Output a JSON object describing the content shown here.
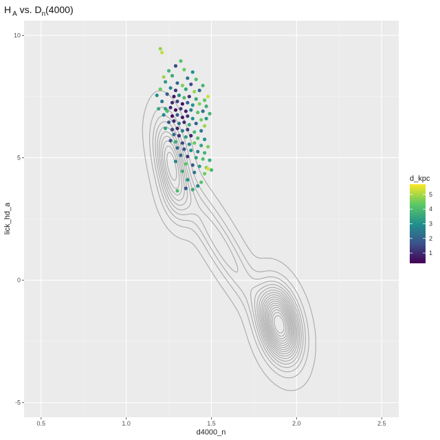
{
  "chart_data": {
    "type": "scatter",
    "title": {
      "main": "H",
      "sub1": "A",
      "mid": " vs. D",
      "sub2": "n",
      "tail": "(4000)"
    },
    "xlabel": "d4000_n",
    "ylabel": "lick_hd_a",
    "xlim": [
      0.4,
      2.6
    ],
    "ylim": [
      -5.6,
      10.6
    ],
    "x_ticks": [
      {
        "value": 0.5,
        "label": "0.5"
      },
      {
        "value": 1.0,
        "label": "1.0"
      },
      {
        "value": 1.5,
        "label": "1.5"
      },
      {
        "value": 2.0,
        "label": "2.0"
      },
      {
        "value": 2.5,
        "label": "2.5"
      }
    ],
    "y_ticks": [
      {
        "value": -5,
        "label": "-5"
      },
      {
        "value": 0,
        "label": "0"
      },
      {
        "value": 5,
        "label": "5"
      },
      {
        "value": 10,
        "label": "10"
      }
    ],
    "grid": true,
    "colorbar": {
      "title": "d_kpc",
      "min": 0.3,
      "max": 5.7,
      "ticks": [
        {
          "value": 1,
          "label": "1"
        },
        {
          "value": 2,
          "label": "2"
        },
        {
          "value": 3,
          "label": "3"
        },
        {
          "value": 4,
          "label": "4"
        },
        {
          "value": 5,
          "label": "5"
        }
      ],
      "placement": "right",
      "palette": [
        "#440154",
        "#3b528b",
        "#21908c",
        "#5dc963",
        "#fde725"
      ]
    },
    "density_contours": {
      "color": "#a8a8a8",
      "levels": 18,
      "peaks": [
        {
          "x": 1.9,
          "y": -1.8,
          "amp": 1.0,
          "sx": 0.075,
          "sy": 0.95,
          "rho": -0.3
        },
        {
          "x": 1.26,
          "y": 4.9,
          "amp": 0.5,
          "sx": 0.06,
          "sy": 1.1,
          "rho": -0.4
        },
        {
          "x": 1.55,
          "y": 1.5,
          "amp": 0.22,
          "sx": 0.17,
          "sy": 1.9,
          "rho": -0.92
        },
        {
          "x": 1.3,
          "y": 3.3,
          "amp": 0.14,
          "sx": 0.06,
          "sy": 0.7,
          "rho": -0.3
        }
      ]
    },
    "points": [
      {
        "x": 1.2,
        "y": 9.45,
        "c": 4.8
      },
      {
        "x": 1.21,
        "y": 9.3,
        "c": 5.2
      },
      {
        "x": 1.32,
        "y": 8.95,
        "c": 4.2
      },
      {
        "x": 1.29,
        "y": 8.75,
        "c": 1.5
      },
      {
        "x": 1.25,
        "y": 8.55,
        "c": 3.8
      },
      {
        "x": 1.34,
        "y": 8.6,
        "c": 4.5
      },
      {
        "x": 1.39,
        "y": 8.5,
        "c": 3.0
      },
      {
        "x": 1.22,
        "y": 8.3,
        "c": 4.9
      },
      {
        "x": 1.27,
        "y": 8.35,
        "c": 3.6
      },
      {
        "x": 1.36,
        "y": 8.25,
        "c": 2.4
      },
      {
        "x": 1.41,
        "y": 8.2,
        "c": 4.1
      },
      {
        "x": 1.23,
        "y": 8.1,
        "c": 3.2
      },
      {
        "x": 1.3,
        "y": 8.05,
        "c": 2.1
      },
      {
        "x": 1.33,
        "y": 7.95,
        "c": 4.6
      },
      {
        "x": 1.38,
        "y": 8.0,
        "c": 1.6
      },
      {
        "x": 1.45,
        "y": 7.95,
        "c": 3.9
      },
      {
        "x": 1.2,
        "y": 7.8,
        "c": 4.4
      },
      {
        "x": 1.26,
        "y": 7.85,
        "c": 2.7
      },
      {
        "x": 1.29,
        "y": 7.75,
        "c": 1.2
      },
      {
        "x": 1.35,
        "y": 7.8,
        "c": 3.4
      },
      {
        "x": 1.4,
        "y": 7.7,
        "c": 4.8
      },
      {
        "x": 1.43,
        "y": 7.75,
        "c": 2.2
      },
      {
        "x": 1.48,
        "y": 7.5,
        "c": 5.3
      },
      {
        "x": 1.18,
        "y": 7.55,
        "c": 3.0
      },
      {
        "x": 1.24,
        "y": 7.6,
        "c": 1.8
      },
      {
        "x": 1.28,
        "y": 7.5,
        "c": 0.7
      },
      {
        "x": 1.31,
        "y": 7.55,
        "c": 2.9
      },
      {
        "x": 1.34,
        "y": 7.45,
        "c": 4.0
      },
      {
        "x": 1.37,
        "y": 7.5,
        "c": 1.1
      },
      {
        "x": 1.41,
        "y": 7.4,
        "c": 3.5
      },
      {
        "x": 1.46,
        "y": 7.35,
        "c": 4.3
      },
      {
        "x": 1.21,
        "y": 7.3,
        "c": 2.5
      },
      {
        "x": 1.27,
        "y": 7.25,
        "c": 0.9
      },
      {
        "x": 1.3,
        "y": 7.3,
        "c": 1.4
      },
      {
        "x": 1.33,
        "y": 7.2,
        "c": 0.6
      },
      {
        "x": 1.36,
        "y": 7.25,
        "c": 2.0
      },
      {
        "x": 1.39,
        "y": 7.15,
        "c": 3.1
      },
      {
        "x": 1.43,
        "y": 7.2,
        "c": 4.7
      },
      {
        "x": 1.47,
        "y": 7.1,
        "c": 3.7
      },
      {
        "x": 1.23,
        "y": 7.0,
        "c": 3.3
      },
      {
        "x": 1.26,
        "y": 7.05,
        "c": 1.0
      },
      {
        "x": 1.29,
        "y": 6.95,
        "c": 0.5
      },
      {
        "x": 1.32,
        "y": 7.0,
        "c": 1.3
      },
      {
        "x": 1.35,
        "y": 6.9,
        "c": 0.8
      },
      {
        "x": 1.38,
        "y": 6.95,
        "c": 2.6
      },
      {
        "x": 1.42,
        "y": 6.85,
        "c": 4.2
      },
      {
        "x": 1.45,
        "y": 6.9,
        "c": 2.3
      },
      {
        "x": 1.49,
        "y": 6.8,
        "c": 3.8
      },
      {
        "x": 1.22,
        "y": 6.75,
        "c": 2.8
      },
      {
        "x": 1.27,
        "y": 6.7,
        "c": 0.6
      },
      {
        "x": 1.3,
        "y": 6.75,
        "c": 1.9
      },
      {
        "x": 1.33,
        "y": 6.65,
        "c": 0.7
      },
      {
        "x": 1.36,
        "y": 6.7,
        "c": 1.2
      },
      {
        "x": 1.39,
        "y": 6.6,
        "c": 3.0
      },
      {
        "x": 1.44,
        "y": 6.55,
        "c": 4.5
      },
      {
        "x": 1.47,
        "y": 6.6,
        "c": 3.2
      },
      {
        "x": 1.25,
        "y": 6.45,
        "c": 1.7
      },
      {
        "x": 1.28,
        "y": 6.5,
        "c": 0.9
      },
      {
        "x": 1.31,
        "y": 6.4,
        "c": 2.4
      },
      {
        "x": 1.34,
        "y": 6.45,
        "c": 1.0
      },
      {
        "x": 1.37,
        "y": 6.35,
        "c": 3.6
      },
      {
        "x": 1.41,
        "y": 6.4,
        "c": 2.0
      },
      {
        "x": 1.46,
        "y": 6.3,
        "c": 4.9
      },
      {
        "x": 1.23,
        "y": 6.2,
        "c": 3.4
      },
      {
        "x": 1.27,
        "y": 6.15,
        "c": 1.5
      },
      {
        "x": 1.3,
        "y": 6.2,
        "c": 0.8
      },
      {
        "x": 1.33,
        "y": 6.1,
        "c": 2.7
      },
      {
        "x": 1.36,
        "y": 6.15,
        "c": 1.3
      },
      {
        "x": 1.4,
        "y": 6.05,
        "c": 3.9
      },
      {
        "x": 1.44,
        "y": 6.1,
        "c": 2.5
      },
      {
        "x": 1.28,
        "y": 5.95,
        "c": 2.2
      },
      {
        "x": 1.31,
        "y": 5.9,
        "c": 1.1
      },
      {
        "x": 1.35,
        "y": 5.85,
        "c": 3.3
      },
      {
        "x": 1.38,
        "y": 5.9,
        "c": 0.9
      },
      {
        "x": 1.42,
        "y": 5.8,
        "c": 4.0
      },
      {
        "x": 1.46,
        "y": 5.75,
        "c": 3.1
      },
      {
        "x": 1.26,
        "y": 5.7,
        "c": 1.8
      },
      {
        "x": 1.29,
        "y": 5.65,
        "c": 3.7
      },
      {
        "x": 1.33,
        "y": 5.6,
        "c": 1.4
      },
      {
        "x": 1.37,
        "y": 5.55,
        "c": 2.9
      },
      {
        "x": 1.4,
        "y": 5.6,
        "c": 4.4
      },
      {
        "x": 1.44,
        "y": 5.5,
        "c": 3.5
      },
      {
        "x": 1.48,
        "y": 5.45,
        "c": 4.6
      },
      {
        "x": 1.3,
        "y": 5.4,
        "c": 2.1
      },
      {
        "x": 1.34,
        "y": 5.35,
        "c": 1.6
      },
      {
        "x": 1.38,
        "y": 5.3,
        "c": 3.0
      },
      {
        "x": 1.42,
        "y": 5.25,
        "c": 2.6
      },
      {
        "x": 1.46,
        "y": 5.2,
        "c": 3.8
      },
      {
        "x": 1.32,
        "y": 5.1,
        "c": 2.3
      },
      {
        "x": 1.36,
        "y": 5.05,
        "c": 1.2
      },
      {
        "x": 1.41,
        "y": 5.0,
        "c": 3.4
      },
      {
        "x": 1.45,
        "y": 4.95,
        "c": 4.1
      },
      {
        "x": 1.49,
        "y": 4.9,
        "c": 3.6
      },
      {
        "x": 1.29,
        "y": 4.85,
        "c": 2.8
      },
      {
        "x": 1.35,
        "y": 4.75,
        "c": 4.3
      },
      {
        "x": 1.39,
        "y": 4.7,
        "c": 1.9
      },
      {
        "x": 1.43,
        "y": 4.65,
        "c": 3.2
      },
      {
        "x": 1.47,
        "y": 4.6,
        "c": 4.7
      },
      {
        "x": 1.5,
        "y": 4.5,
        "c": 3.9
      },
      {
        "x": 1.33,
        "y": 4.45,
        "c": 3.7
      },
      {
        "x": 1.4,
        "y": 4.4,
        "c": 2.4
      },
      {
        "x": 1.46,
        "y": 4.35,
        "c": 4.5
      },
      {
        "x": 1.36,
        "y": 4.1,
        "c": 3.1
      },
      {
        "x": 1.44,
        "y": 4.0,
        "c": 4.2
      },
      {
        "x": 1.35,
        "y": 3.75,
        "c": 1.8
      },
      {
        "x": 1.39,
        "y": 3.7,
        "c": 3.6
      },
      {
        "x": 1.3,
        "y": 3.65,
        "c": 4.0
      },
      {
        "x": 1.42,
        "y": 3.85,
        "c": 2.7
      },
      {
        "x": 1.48,
        "y": 4.55,
        "c": 5.4
      },
      {
        "x": 1.24,
        "y": 6.9,
        "c": 4.1
      },
      {
        "x": 1.19,
        "y": 7.0,
        "c": 3.5
      }
    ]
  }
}
